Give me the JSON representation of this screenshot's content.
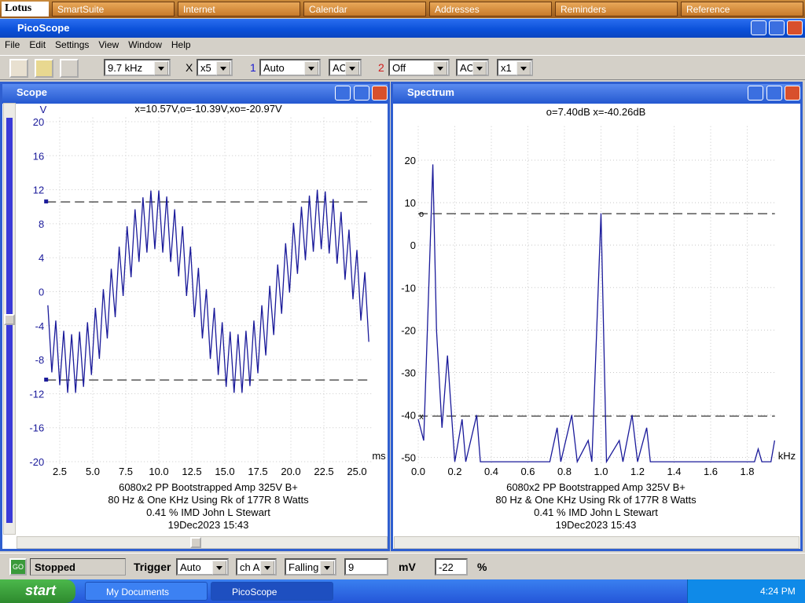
{
  "lotus_bar": {
    "brand": "Lotus",
    "items": [
      "SmartSuite",
      "Internet",
      "Calendar",
      "Addresses",
      "Reminders",
      "Reference"
    ]
  },
  "app": {
    "title": "PicoScope",
    "menu": [
      "File",
      "Edit",
      "Settings",
      "View",
      "Window",
      "Help"
    ]
  },
  "toolbar": {
    "timebase": "9.7 kHz",
    "multiplier_label": "X",
    "multiplier": "x5",
    "ch1_label": "1",
    "ch1_range": "Auto",
    "ch1_coupling": "AC",
    "ch2_label": "2",
    "ch2_range": "Off",
    "ch2_coupling": "AC",
    "ch2_multiplier": "x1"
  },
  "chart_data": [
    {
      "type": "line",
      "title": "Scope",
      "annotation": "x=10.57V,o=-10.39V,xo=-20.97V",
      "y_label": "V",
      "x_label": "ms",
      "caption": [
        "6080x2 PP Bootstrapped Amp 325V B+",
        "80 Hz & One KHz Using Rk of 177R 8 Watts",
        "0.41 % IMD John L Stewart",
        "19Dec2023  15:43"
      ],
      "color": "#1a1a9a",
      "grid": true,
      "x": [
        1.6,
        1.9,
        2.2,
        2.5,
        2.8,
        3.1,
        3.4,
        3.7,
        4,
        4.3,
        4.6,
        4.9,
        5.2,
        5.5,
        5.8,
        6.1,
        6.4,
        6.7,
        7,
        7.3,
        7.6,
        7.9,
        8.2,
        8.5,
        8.8,
        9.1,
        9.4,
        9.7,
        10,
        10.3,
        10.6,
        10.9,
        11.2,
        11.5,
        11.8,
        12.1,
        12.4,
        12.7,
        13,
        13.3,
        13.6,
        13.9,
        14.2,
        14.5,
        14.8,
        15.1,
        15.4,
        15.7,
        16,
        16.3,
        16.6,
        16.9,
        17.2,
        17.5,
        17.8,
        18.1,
        18.4,
        18.7,
        19,
        19.3,
        19.6,
        19.9,
        20.2,
        20.5,
        20.8,
        21.1,
        21.4,
        21.7,
        22,
        22.3,
        22.6,
        22.9,
        23.2,
        23.5,
        23.8,
        24.1,
        24.4,
        24.7,
        25,
        25.3,
        25.6,
        25.9
      ],
      "values": [
        -1.6,
        -9.5,
        -3.4,
        -11.0,
        -4.6,
        -11.9,
        -5.0,
        -11.9,
        -4.7,
        -11.2,
        -3.6,
        -9.8,
        -1.9,
        -7.9,
        0.3,
        -5.5,
        2.7,
        -3.0,
        5.3,
        -0.5,
        7.7,
        1.7,
        9.7,
        3.5,
        11.1,
        4.6,
        11.9,
        5.0,
        11.9,
        4.6,
        11.2,
        3.5,
        9.7,
        1.8,
        7.7,
        -0.5,
        5.3,
        -3.0,
        2.8,
        -5.5,
        0.3,
        -7.9,
        -1.9,
        -9.8,
        -3.6,
        -11.2,
        -4.7,
        -11.9,
        -5.0,
        -11.9,
        -4.6,
        -11.1,
        -3.4,
        -9.6,
        -1.6,
        -7.5,
        0.7,
        -5.1,
        3.2,
        -2.6,
        5.7,
        -0.1,
        8.1,
        2.1,
        10.0,
        3.7,
        11.3,
        4.7,
        12.0,
        5.0,
        11.8,
        4.5,
        10.9,
        3.3,
        9.4,
        1.4,
        7.3,
        -0.9,
        4.9,
        -3.4,
        2.3,
        -5.9
      ],
      "cursors": [
        10.57,
        -10.39
      ],
      "xlim": [
        1.5,
        26.1
      ],
      "xticks": [
        2.5,
        {
          "value": 5,
          "label": "5.0"
        },
        7.5,
        {
          "value": 10,
          "label": "10.0"
        },
        12.5,
        {
          "value": 15,
          "label": "15.0"
        },
        17.5,
        {
          "value": 20,
          "label": "20.0"
        },
        22.5,
        {
          "value": 25,
          "label": "25.0"
        }
      ],
      "ylim": [
        -20.5,
        20.5
      ],
      "yticks": [
        20,
        16,
        12,
        8,
        4,
        0,
        -4,
        -8,
        -12,
        -16,
        -20
      ]
    },
    {
      "type": "line",
      "title": "Spectrum",
      "annotation": "o=7.40dB  x=-40.26dB",
      "x_label": "kHz",
      "caption": [
        "6080x2 PP Bootstrapped Amp 325V B+",
        "80 Hz & One KHz Using Rk of 177R 8 Watts",
        "0.41 % IMD John L Stewart",
        "19Dec2023  15:43"
      ],
      "color": "#1a1a9a",
      "grid": true,
      "x": [
        0,
        0.03,
        0.05,
        0.08,
        0.1,
        0.13,
        0.16,
        0.2,
        0.24,
        0.26,
        0.32,
        0.34,
        0.72,
        0.76,
        0.78,
        0.84,
        0.87,
        0.93,
        0.95,
        1.0,
        1.03,
        1.1,
        1.12,
        1.17,
        1.2,
        1.25,
        1.27,
        1.84,
        1.86,
        1.88,
        1.93,
        1.95
      ],
      "values": [
        -41,
        -46,
        -20,
        19,
        -20,
        -43,
        -26,
        -51,
        -41,
        -51,
        -40,
        -51,
        -51,
        -43,
        -51,
        -40,
        -51,
        -46,
        -51,
        7.5,
        -51,
        -46,
        -51,
        -40,
        -51,
        -43,
        -51,
        -51,
        -48,
        -51,
        -51,
        -46
      ],
      "cursors": [
        7.4,
        -40.26
      ],
      "cursor_labels": [
        "o",
        "x"
      ],
      "xlim": [
        0,
        1.96
      ],
      "xticks": [
        {
          "value": 0,
          "label": "0.0"
        },
        0.2,
        0.4,
        0.6,
        0.8,
        {
          "value": 1,
          "label": "1.0"
        },
        1.2,
        1.4,
        1.6,
        1.8
      ],
      "ylim": [
        -51.5,
        28
      ],
      "yticks": [
        20,
        10,
        0,
        -10,
        -20,
        -30,
        -40,
        -50
      ]
    }
  ],
  "status_bar": {
    "button": "GO",
    "state": "Stopped",
    "trigger_label": "Trigger",
    "trigger_mode": "Auto",
    "trigger_channel": "ch A",
    "trigger_edge": "Falling",
    "threshold": "9",
    "threshold_unit": "mV",
    "delay": "-22",
    "delay_unit": "%"
  },
  "taskbar": {
    "start": "start",
    "tasks": [
      "My Documents",
      "PicoScope"
    ],
    "clock": "4:24 PM"
  }
}
